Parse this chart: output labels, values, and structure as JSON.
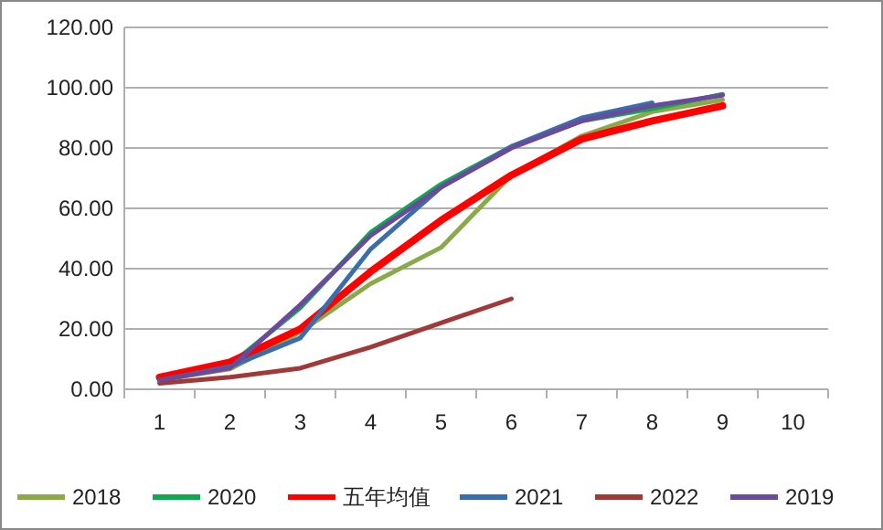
{
  "chart_data": {
    "type": "line",
    "categories": [
      "1",
      "2",
      "3",
      "4",
      "5",
      "6",
      "7",
      "8",
      "9",
      "10"
    ],
    "series": [
      {
        "name": "2018",
        "color": "#8aaa4a",
        "values": [
          3,
          6.7,
          19,
          35,
          47,
          71,
          84,
          92,
          96,
          null
        ]
      },
      {
        "name": "2020",
        "color": "#10a850",
        "values": [
          3,
          8,
          27,
          52,
          68,
          80.5,
          89,
          93,
          97.8,
          null
        ]
      },
      {
        "name": "五年均值",
        "color": "#ff0000",
        "values": [
          4,
          9,
          20,
          39,
          56,
          71,
          83,
          89,
          94,
          null
        ]
      },
      {
        "name": "2021",
        "color": "#3a6eaa",
        "values": [
          3,
          7.5,
          17,
          46.5,
          67,
          80.5,
          90,
          95,
          null,
          null
        ]
      },
      {
        "name": "2022",
        "color": "#a03a38",
        "values": [
          2,
          4,
          7,
          14,
          22,
          30,
          null,
          null,
          null,
          null
        ]
      },
      {
        "name": "2019",
        "color": "#6a4a9a",
        "values": [
          3,
          7,
          28,
          51,
          67,
          80,
          89,
          94,
          97.5,
          null
        ]
      }
    ],
    "ylim": [
      0,
      120
    ],
    "yticks": [
      {
        "value": 0,
        "label": "0.00"
      },
      {
        "value": 20,
        "label": "20.00"
      },
      {
        "value": 40,
        "label": "40.00"
      },
      {
        "value": 60,
        "label": "60.00"
      },
      {
        "value": 80,
        "label": "80.00"
      },
      {
        "value": 100,
        "label": "100.00"
      },
      {
        "value": 120,
        "label": "120.00"
      }
    ],
    "grid": "y",
    "legend": "bottom",
    "marker": "none",
    "line_style": "solid"
  }
}
